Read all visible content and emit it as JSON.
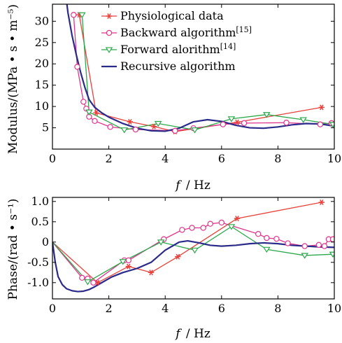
{
  "chart_data": [
    {
      "type": "line",
      "ylabel": "Modulus/(MPa • s • m⁻⁵)",
      "xlabel_italic": "f",
      "xlabel_unit": "/ Hz",
      "xlim": [
        0,
        10
      ],
      "ylim": [
        0,
        34
      ],
      "xticks": [
        0,
        2,
        4,
        6,
        8,
        10
      ],
      "yticks": [
        5,
        10,
        15,
        20,
        25,
        30
      ],
      "legend": {
        "position": "top-right",
        "entries": [
          {
            "key": "phys",
            "text": "Physiological data",
            "ref": ""
          },
          {
            "key": "back",
            "text": "Backward algorithm",
            "ref": "[15]"
          },
          {
            "key": "fwd",
            "text": "Forward alorithm",
            "ref": "[14]"
          },
          {
            "key": "rec",
            "text": "Recursive algorithm",
            "ref": ""
          }
        ]
      },
      "series": [
        {
          "key": "phys",
          "color": "#e8413c",
          "marker": "star",
          "x": [
            0.95,
            1.55,
            2.75,
            3.6,
            4.35,
            6.55,
            9.55
          ],
          "y": [
            31.5,
            8.5,
            6.4,
            5.3,
            4.1,
            6.3,
            9.8
          ]
        },
        {
          "key": "back",
          "color": "#e0358c",
          "marker": "circle",
          "x": [
            0.75,
            0.88,
            1.1,
            1.2,
            1.3,
            1.5,
            2.05,
            2.95,
            4.35,
            5.0,
            6.05,
            6.8,
            8.3,
            9.5,
            9.9
          ],
          "y": [
            31.5,
            19.3,
            11.1,
            9.5,
            7.6,
            6.6,
            5.2,
            4.6,
            4.3,
            4.9,
            5.8,
            6.1,
            6.2,
            5.8,
            6.1
          ]
        },
        {
          "key": "fwd",
          "color": "#2aa84a",
          "marker": "triangle-down",
          "x": [
            1.05,
            1.3,
            2.55,
            3.75,
            5.05,
            6.35,
            7.6,
            8.9,
            9.95
          ],
          "y": [
            31.5,
            8.7,
            4.5,
            6.0,
            4.5,
            7.1,
            8.1,
            6.9,
            5.8
          ]
        },
        {
          "key": "rec",
          "color": "#2a2a8a",
          "marker": "none",
          "x": [
            0.4,
            0.55,
            0.7,
            0.85,
            1.0,
            1.15,
            1.3,
            1.5,
            1.75,
            2.0,
            2.5,
            3.0,
            3.5,
            4.0,
            4.5,
            5.0,
            5.5,
            6.0,
            6.5,
            7.0,
            7.5,
            8.0,
            8.5,
            9.0,
            9.5,
            10.0
          ],
          "y": [
            40,
            32,
            26.5,
            22,
            18,
            14.5,
            11.6,
            9.8,
            8.5,
            7.5,
            6.0,
            4.9,
            4.3,
            4.2,
            4.9,
            6.4,
            6.9,
            6.5,
            5.6,
            5.0,
            4.9,
            5.2,
            5.7,
            6.0,
            5.9,
            5.4
          ]
        }
      ]
    },
    {
      "type": "line",
      "ylabel": "Phase/(rad • s⁻¹)",
      "xlabel_italic": "f",
      "xlabel_unit": "/ Hz",
      "xlim": [
        0,
        10
      ],
      "ylim": [
        -1.4,
        1.1
      ],
      "xticks": [
        0,
        2,
        4,
        6,
        8,
        10
      ],
      "yticks": [
        -1.0,
        -0.5,
        0,
        0.5,
        1.0
      ],
      "ytick_labels": [
        "-1.0",
        "-0.5",
        "0",
        "0.5",
        "1.0"
      ],
      "series": [
        {
          "key": "phys",
          "color": "#e8413c",
          "marker": "star",
          "x": [
            0.0,
            1.6,
            2.7,
            3.5,
            4.45,
            6.55,
            9.55
          ],
          "y": [
            0.0,
            -1.0,
            -0.6,
            -0.75,
            -0.36,
            0.58,
            0.98
          ]
        },
        {
          "key": "back",
          "color": "#e0358c",
          "marker": "circle",
          "x": [
            0.0,
            1.05,
            1.25,
            1.45,
            2.55,
            2.7,
            3.95,
            4.6,
            4.95,
            5.35,
            5.6,
            6.0,
            7.3,
            7.6,
            7.95,
            8.35,
            8.95,
            9.45,
            9.65,
            9.8,
            9.95
          ],
          "y": [
            0.0,
            -0.88,
            -0.9,
            -1.0,
            -0.45,
            -0.45,
            0.07,
            0.3,
            0.35,
            0.35,
            0.45,
            0.48,
            0.2,
            0.1,
            0.08,
            -0.03,
            -0.1,
            -0.07,
            -0.1,
            0.07,
            0.07
          ]
        },
        {
          "key": "fwd",
          "color": "#2aa84a",
          "marker": "triangle-down",
          "x": [
            0.0,
            1.25,
            2.5,
            3.85,
            5.05,
            6.35,
            7.6,
            8.95,
            9.95
          ],
          "y": [
            0.0,
            -0.98,
            -0.48,
            0.0,
            -0.2,
            0.38,
            -0.18,
            -0.33,
            -0.3
          ]
        },
        {
          "key": "rec",
          "color": "#2a2a8a",
          "marker": "none",
          "x": [
            0.0,
            0.1,
            0.2,
            0.35,
            0.5,
            0.7,
            0.9,
            1.1,
            1.3,
            1.5,
            1.8,
            2.1,
            2.5,
            3.0,
            3.5,
            4.0,
            4.5,
            4.8,
            5.2,
            5.6,
            6.0,
            6.5,
            7.0,
            7.5,
            8.0,
            8.5,
            9.0,
            9.5,
            10.0
          ],
          "y": [
            0.0,
            -0.5,
            -0.85,
            -1.05,
            -1.15,
            -1.2,
            -1.22,
            -1.21,
            -1.17,
            -1.1,
            -0.98,
            -0.86,
            -0.75,
            -0.65,
            -0.5,
            -0.2,
            0.0,
            0.03,
            -0.02,
            -0.08,
            -0.1,
            -0.08,
            -0.04,
            -0.02,
            -0.04,
            -0.08,
            -0.1,
            -0.12,
            -0.13
          ]
        }
      ]
    }
  ]
}
